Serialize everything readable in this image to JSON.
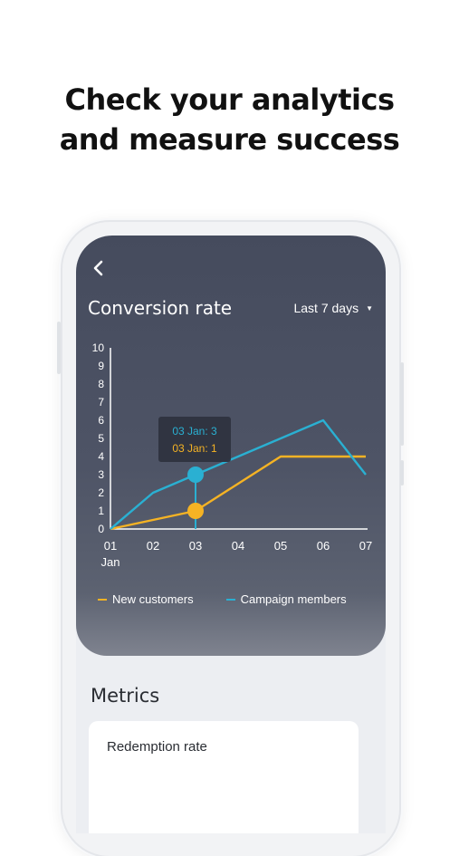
{
  "headline": {
    "line1": "Check your analytics",
    "line2": "and measure success"
  },
  "screen": {
    "back_icon": "chevron-left-icon",
    "title": "Conversion rate",
    "period": {
      "label": "Last 7 days",
      "icon": "caret-down-icon"
    },
    "legend": [
      {
        "label": "New customers",
        "color": "#f5b324"
      },
      {
        "label": "Campaign members",
        "color": "#2ab0d2"
      }
    ],
    "tooltip": {
      "line1": "03 Jan: 3",
      "line2": "03 Jan: 1"
    },
    "metrics": {
      "title": "Metrics",
      "card_label": "Redemption rate"
    }
  },
  "chart_data": {
    "type": "line",
    "categories": [
      "01",
      "02",
      "03",
      "04",
      "05",
      "06",
      "07"
    ],
    "x_sublabel": "Jan",
    "ylim": [
      0,
      10
    ],
    "yticks": [
      0,
      1,
      2,
      3,
      4,
      5,
      6,
      7,
      8,
      9,
      10
    ],
    "grid": false,
    "legend_position": "bottom",
    "highlight_index": 2,
    "series": [
      {
        "name": "New customers",
        "color": "#f5b324",
        "values": [
          0,
          0.5,
          1,
          2.5,
          4,
          4,
          4
        ]
      },
      {
        "name": "Campaign members",
        "color": "#2ab0d2",
        "values": [
          0,
          2,
          3,
          4,
          5,
          6,
          3
        ]
      }
    ]
  }
}
